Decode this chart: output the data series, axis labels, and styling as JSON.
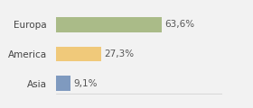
{
  "categories": [
    "Europa",
    "America",
    "Asia"
  ],
  "values": [
    63.6,
    27.3,
    9.1
  ],
  "labels": [
    "63,6%",
    "27,3%",
    "9,1%"
  ],
  "bar_colors": [
    "#aabb88",
    "#f0c97a",
    "#7f9abf"
  ],
  "background_color": "#f2f2f2",
  "xlim": [
    0,
    100
  ],
  "label_fontsize": 7.5,
  "tick_fontsize": 7.5,
  "bar_height": 0.5
}
